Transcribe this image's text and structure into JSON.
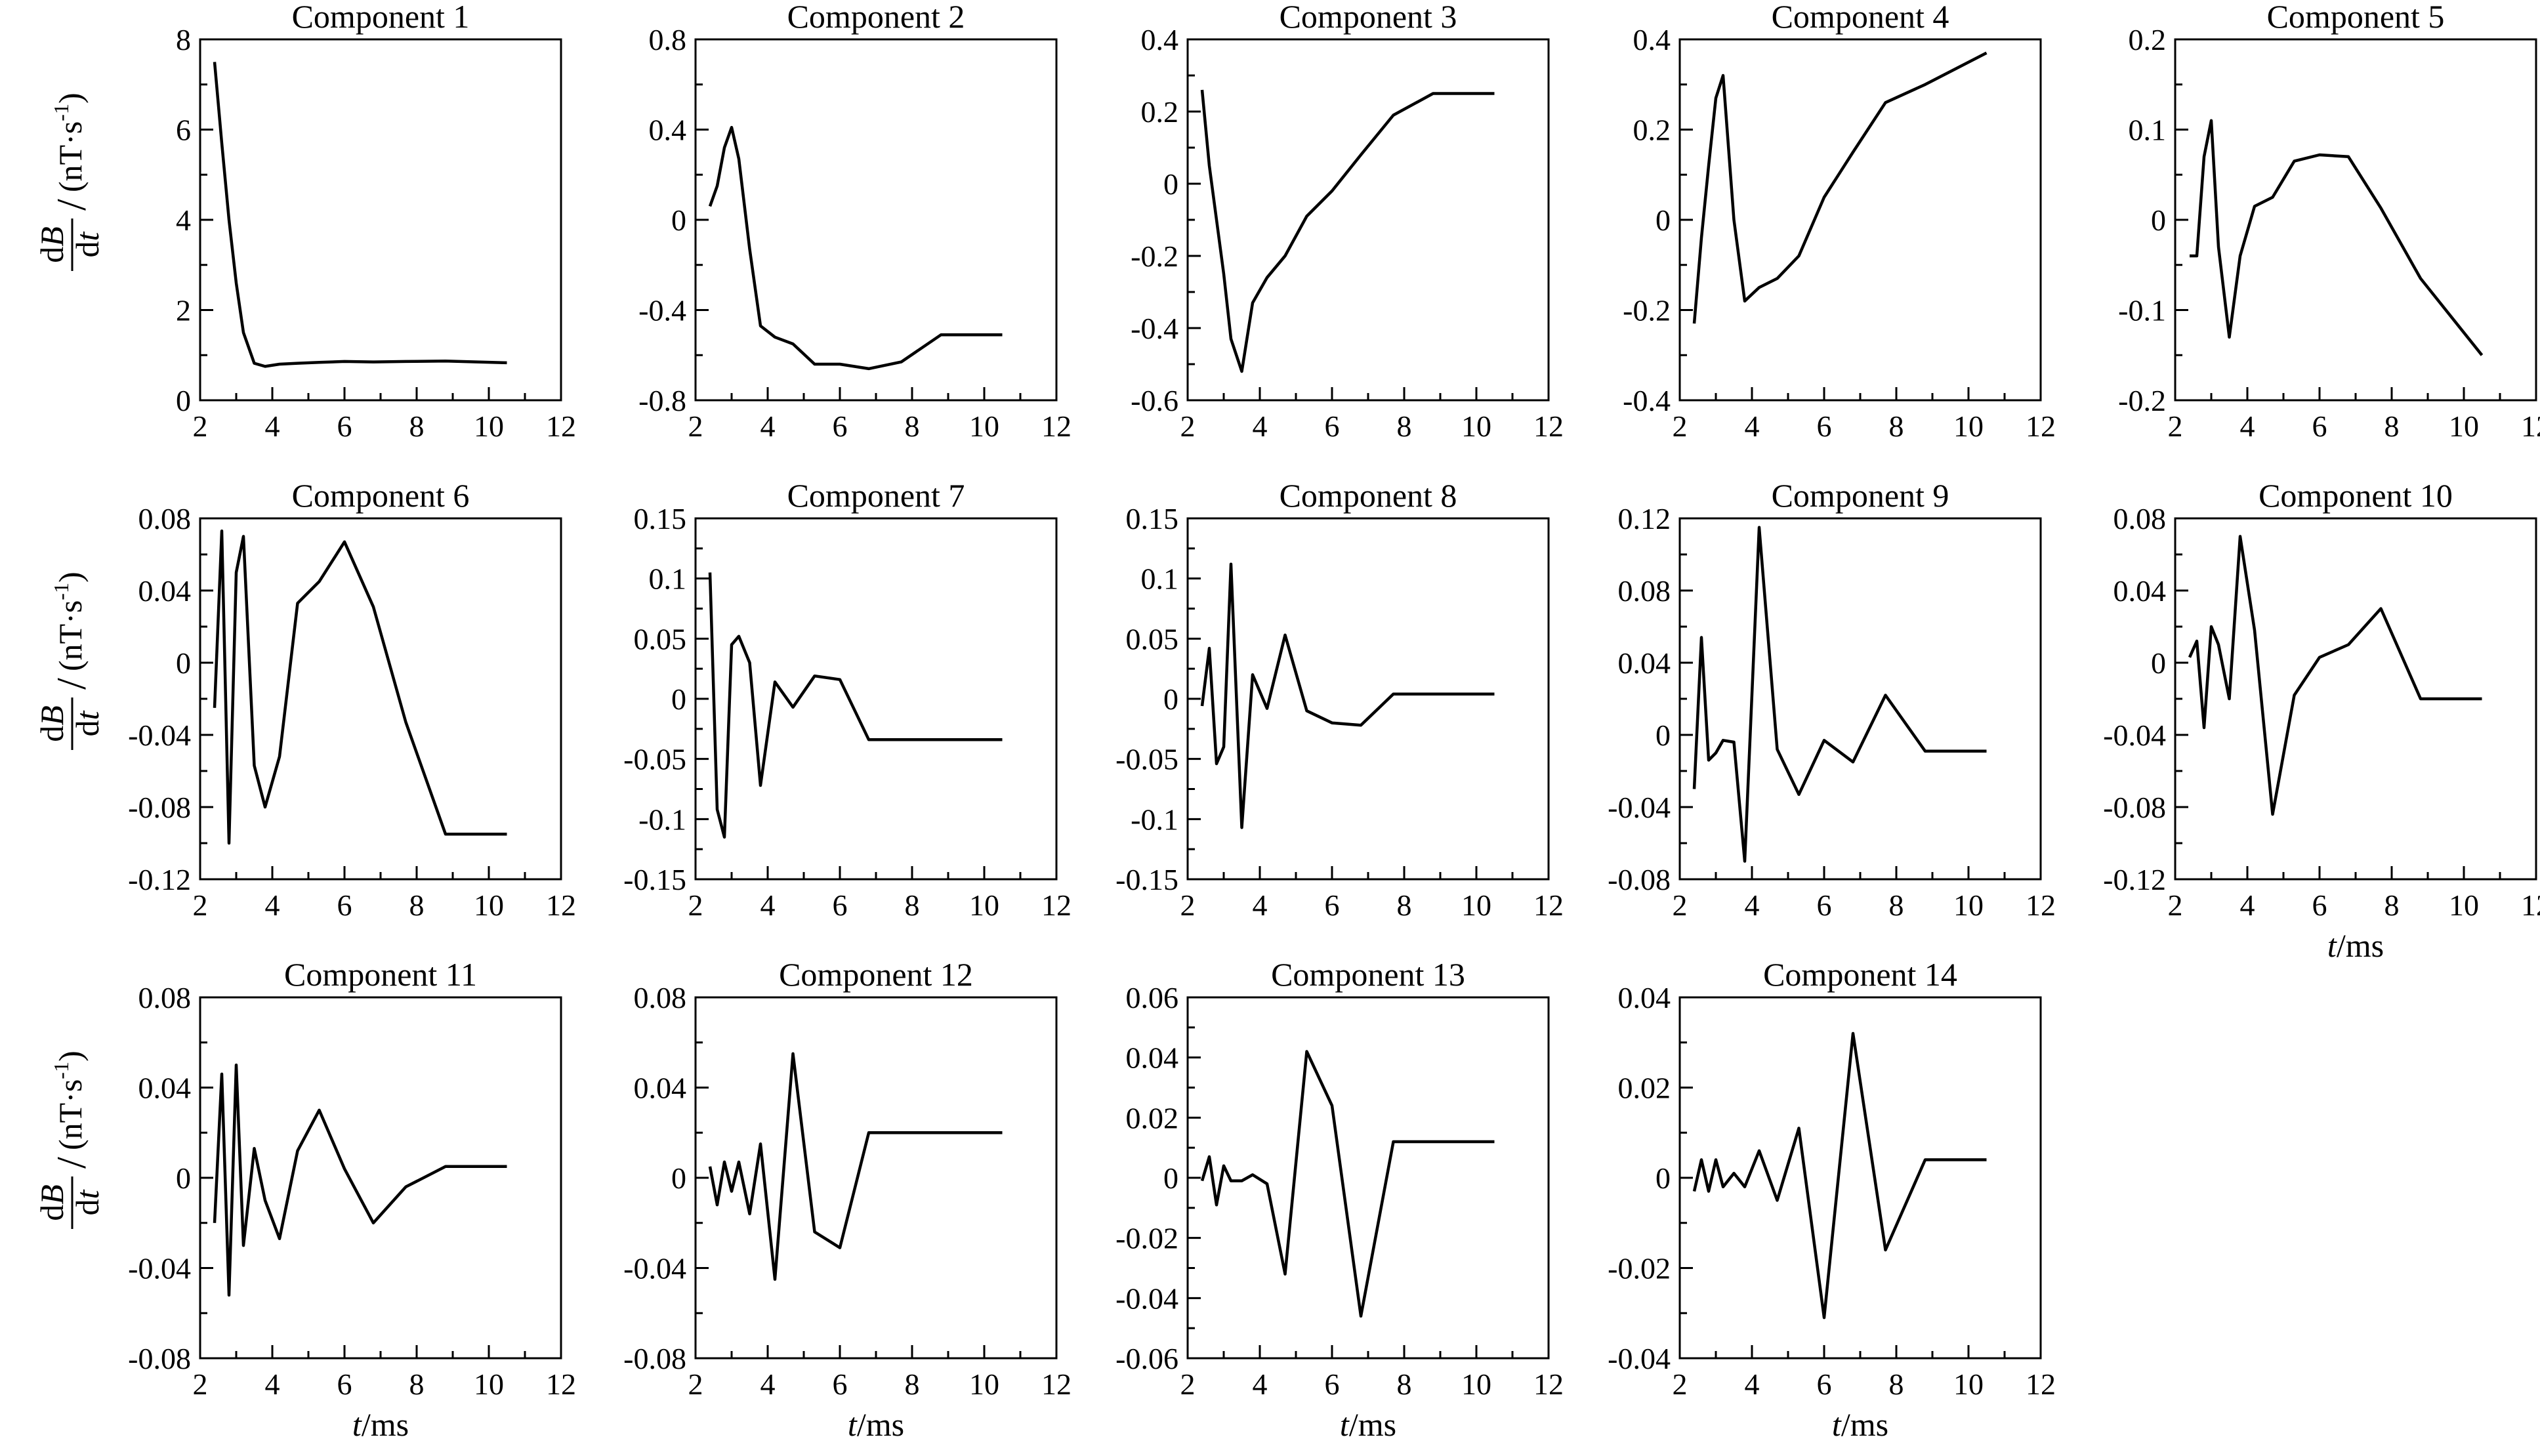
{
  "figure": {
    "y_label_main": "dB",
    "y_label_den": "dt",
    "y_label_unit": "(nT·s",
    "y_label_exp": "-1",
    "y_label_close": ")",
    "x_label_var": "t",
    "x_label_unit": "/ms"
  },
  "chart_data": [
    {
      "type": "line",
      "title": "Component 1",
      "xlim": [
        2,
        12
      ],
      "ylim": [
        0,
        8
      ],
      "xticks": [
        "2",
        "4",
        "6",
        "8",
        "10",
        "12"
      ],
      "yticks": [
        "0",
        "2",
        "4",
        "6",
        "8"
      ],
      "x": [
        2.4,
        2.6,
        2.8,
        3.0,
        3.2,
        3.5,
        3.8,
        4.2,
        4.7,
        5.3,
        6.0,
        6.8,
        7.7,
        8.8,
        10.5
      ],
      "values": [
        7.5,
        5.7,
        4.0,
        2.6,
        1.5,
        0.82,
        0.75,
        0.8,
        0.82,
        0.84,
        0.86,
        0.85,
        0.86,
        0.87,
        0.83
      ]
    },
    {
      "type": "line",
      "title": "Component 2",
      "xlim": [
        2,
        12
      ],
      "ylim": [
        -0.8,
        0.8
      ],
      "xticks": [
        "2",
        "4",
        "6",
        "8",
        "10",
        "12"
      ],
      "yticks": [
        "-0.8",
        "-0.4",
        "0",
        "0.4",
        "0.8"
      ],
      "x": [
        2.4,
        2.6,
        2.8,
        3.0,
        3.2,
        3.5,
        3.8,
        4.2,
        4.7,
        5.3,
        6.0,
        6.8,
        7.7,
        8.8,
        10.5
      ],
      "values": [
        0.06,
        0.15,
        0.32,
        0.41,
        0.27,
        -0.13,
        -0.47,
        -0.52,
        -0.55,
        -0.64,
        -0.64,
        -0.66,
        -0.63,
        -0.51,
        -0.51
      ]
    },
    {
      "type": "line",
      "title": "Component 3",
      "xlim": [
        2,
        12
      ],
      "ylim": [
        -0.6,
        0.4
      ],
      "xticks": [
        "2",
        "4",
        "6",
        "8",
        "10",
        "12"
      ],
      "yticks": [
        "-0.6",
        "-0.4",
        "-0.2",
        "0",
        "0.2",
        "0.4"
      ],
      "x": [
        2.4,
        2.6,
        2.8,
        3.0,
        3.2,
        3.5,
        3.8,
        4.2,
        4.7,
        5.3,
        6.0,
        6.8,
        7.7,
        8.8,
        10.5
      ],
      "values": [
        0.26,
        0.05,
        -0.1,
        -0.25,
        -0.43,
        -0.52,
        -0.33,
        -0.26,
        -0.2,
        -0.09,
        -0.02,
        0.08,
        0.19,
        0.25,
        0.25
      ]
    },
    {
      "type": "line",
      "title": "Component 4",
      "xlim": [
        2,
        12
      ],
      "ylim": [
        -0.4,
        0.4
      ],
      "xticks": [
        "2",
        "4",
        "6",
        "8",
        "10",
        "12"
      ],
      "yticks": [
        "-0.4",
        "-0.2",
        "0",
        "0.2",
        "0.4"
      ],
      "x": [
        2.4,
        2.6,
        2.8,
        3.0,
        3.2,
        3.5,
        3.8,
        4.2,
        4.7,
        5.3,
        6.0,
        6.8,
        7.7,
        8.8,
        10.5
      ],
      "values": [
        -0.23,
        -0.04,
        0.12,
        0.27,
        0.32,
        0.0,
        -0.18,
        -0.15,
        -0.13,
        -0.08,
        0.05,
        0.15,
        0.26,
        0.3,
        0.37
      ]
    },
    {
      "type": "line",
      "title": "Component 5",
      "xlim": [
        2,
        12
      ],
      "ylim": [
        -0.2,
        0.2
      ],
      "xticks": [
        "2",
        "4",
        "6",
        "8",
        "10",
        "12"
      ],
      "yticks": [
        "-0.2",
        "-0.1",
        "0",
        "0.1",
        "0.2"
      ],
      "x": [
        2.4,
        2.6,
        2.8,
        3.0,
        3.2,
        3.5,
        3.8,
        4.2,
        4.7,
        5.3,
        6.0,
        6.8,
        7.7,
        8.8,
        10.5
      ],
      "values": [
        -0.04,
        -0.04,
        0.07,
        0.11,
        -0.03,
        -0.13,
        -0.04,
        0.015,
        0.025,
        0.065,
        0.072,
        0.07,
        0.013,
        -0.065,
        -0.15
      ]
    },
    {
      "type": "line",
      "title": "Component 6",
      "xlim": [
        2,
        12
      ],
      "ylim": [
        -0.12,
        0.08
      ],
      "xticks": [
        "2",
        "4",
        "6",
        "8",
        "10",
        "12"
      ],
      "yticks": [
        "-0.12",
        "-0.08",
        "-0.04",
        "0",
        "0.04",
        "0.08"
      ],
      "x": [
        2.4,
        2.6,
        2.8,
        3.0,
        3.2,
        3.5,
        3.8,
        4.2,
        4.7,
        5.3,
        6.0,
        6.8,
        7.7,
        8.8,
        10.5
      ],
      "values": [
        -0.025,
        0.073,
        -0.1,
        0.05,
        0.07,
        -0.057,
        -0.08,
        -0.052,
        0.033,
        0.045,
        0.067,
        0.031,
        -0.033,
        -0.095,
        -0.095
      ]
    },
    {
      "type": "line",
      "title": "Component 7",
      "xlim": [
        2,
        12
      ],
      "ylim": [
        -0.15,
        0.15
      ],
      "xticks": [
        "2",
        "4",
        "6",
        "8",
        "10",
        "12"
      ],
      "yticks": [
        "-0.15",
        "-0.1",
        "-0.05",
        "0",
        "0.05",
        "0.1",
        "0.15"
      ],
      "x": [
        2.4,
        2.6,
        2.8,
        3.0,
        3.2,
        3.5,
        3.8,
        4.2,
        4.7,
        5.3,
        6.0,
        6.8,
        7.7,
        8.8,
        10.5
      ],
      "values": [
        0.105,
        -0.092,
        -0.115,
        0.045,
        0.052,
        0.03,
        -0.072,
        0.014,
        -0.007,
        0.019,
        0.016,
        -0.034,
        -0.034,
        -0.034,
        -0.034
      ]
    },
    {
      "type": "line",
      "title": "Component 8",
      "xlim": [
        2,
        12
      ],
      "ylim": [
        -0.15,
        0.15
      ],
      "xticks": [
        "2",
        "4",
        "6",
        "8",
        "10",
        "12"
      ],
      "yticks": [
        "-0.15",
        "-0.1",
        "-0.05",
        "0",
        "0.05",
        "0.1",
        "0.15"
      ],
      "x": [
        2.4,
        2.6,
        2.8,
        3.0,
        3.2,
        3.5,
        3.8,
        4.2,
        4.7,
        5.3,
        6.0,
        6.8,
        7.7,
        8.8,
        10.5
      ],
      "values": [
        -0.006,
        0.042,
        -0.054,
        -0.04,
        0.112,
        -0.107,
        0.02,
        -0.008,
        0.053,
        -0.01,
        -0.02,
        -0.022,
        0.004,
        0.004,
        0.004
      ]
    },
    {
      "type": "line",
      "title": "Component 9",
      "xlim": [
        2,
        12
      ],
      "ylim": [
        -0.08,
        0.12
      ],
      "xticks": [
        "2",
        "4",
        "6",
        "8",
        "10",
        "12"
      ],
      "yticks": [
        "-0.08",
        "-0.04",
        "0",
        "0.04",
        "0.08",
        "0.12"
      ],
      "x": [
        2.4,
        2.6,
        2.8,
        3.0,
        3.2,
        3.5,
        3.8,
        4.2,
        4.7,
        5.3,
        6.0,
        6.8,
        7.7,
        8.8,
        10.5
      ],
      "values": [
        -0.03,
        0.054,
        -0.014,
        -0.01,
        -0.003,
        -0.004,
        -0.07,
        0.115,
        -0.008,
        -0.033,
        -0.003,
        -0.015,
        0.022,
        -0.009,
        -0.009
      ]
    },
    {
      "type": "line",
      "title": "Component 10",
      "xlim": [
        2,
        12
      ],
      "ylim": [
        -0.12,
        0.08
      ],
      "xticks": [
        "2",
        "4",
        "6",
        "8",
        "10",
        "12"
      ],
      "yticks": [
        "-0.12",
        "-0.08",
        "-0.04",
        "0",
        "0.04",
        "0.08"
      ],
      "x": [
        2.4,
        2.6,
        2.8,
        3.0,
        3.2,
        3.5,
        3.8,
        4.2,
        4.7,
        5.3,
        6.0,
        6.8,
        7.7,
        8.8,
        10.5
      ],
      "values": [
        0.003,
        0.012,
        -0.036,
        0.02,
        0.01,
        -0.02,
        0.07,
        0.018,
        -0.084,
        -0.018,
        0.003,
        0.01,
        0.03,
        -0.02,
        -0.02
      ]
    },
    {
      "type": "line",
      "title": "Component 11",
      "xlim": [
        2,
        12
      ],
      "ylim": [
        -0.08,
        0.08
      ],
      "xticks": [
        "2",
        "4",
        "6",
        "8",
        "10",
        "12"
      ],
      "yticks": [
        "-0.08",
        "-0.04",
        "0",
        "0.04",
        "0.08"
      ],
      "x": [
        2.4,
        2.6,
        2.8,
        3.0,
        3.2,
        3.5,
        3.8,
        4.2,
        4.7,
        5.3,
        6.0,
        6.8,
        7.7,
        8.8,
        10.5
      ],
      "values": [
        -0.02,
        0.046,
        -0.052,
        0.05,
        -0.03,
        0.013,
        -0.01,
        -0.027,
        0.012,
        0.03,
        0.004,
        -0.02,
        -0.004,
        0.005,
        0.005
      ]
    },
    {
      "type": "line",
      "title": "Component 12",
      "xlim": [
        2,
        12
      ],
      "ylim": [
        -0.08,
        0.08
      ],
      "xticks": [
        "2",
        "4",
        "6",
        "8",
        "10",
        "12"
      ],
      "yticks": [
        "-0.08",
        "-0.04",
        "0",
        "0.04",
        "0.08"
      ],
      "x": [
        2.4,
        2.6,
        2.8,
        3.0,
        3.2,
        3.5,
        3.8,
        4.2,
        4.7,
        5.3,
        6.0,
        6.8,
        7.7,
        8.8,
        10.5
      ],
      "values": [
        0.005,
        -0.012,
        0.007,
        -0.006,
        0.007,
        -0.016,
        0.015,
        -0.045,
        0.055,
        -0.024,
        -0.031,
        0.02,
        0.02,
        0.02,
        0.02
      ]
    },
    {
      "type": "line",
      "title": "Component 13",
      "xlim": [
        2,
        12
      ],
      "ylim": [
        -0.06,
        0.06
      ],
      "xticks": [
        "2",
        "4",
        "6",
        "8",
        "10",
        "12"
      ],
      "yticks": [
        "-0.06",
        "-0.04",
        "-0.02",
        "0",
        "0.02",
        "0.04",
        "0.06"
      ],
      "x": [
        2.4,
        2.6,
        2.8,
        3.0,
        3.2,
        3.5,
        3.8,
        4.2,
        4.7,
        5.3,
        6.0,
        6.8,
        7.7,
        8.8,
        10.5
      ],
      "values": [
        -0.001,
        0.007,
        -0.009,
        0.004,
        -0.001,
        -0.001,
        0.001,
        -0.002,
        -0.032,
        0.042,
        0.024,
        -0.046,
        0.012,
        0.012,
        0.012
      ]
    },
    {
      "type": "line",
      "title": "Component 14",
      "xlim": [
        2,
        12
      ],
      "ylim": [
        -0.04,
        0.04
      ],
      "xticks": [
        "2",
        "4",
        "6",
        "8",
        "10",
        "12"
      ],
      "yticks": [
        "-0.04",
        "-0.02",
        "0",
        "0.02",
        "0.04"
      ],
      "x": [
        2.4,
        2.6,
        2.8,
        3.0,
        3.2,
        3.5,
        3.8,
        4.2,
        4.7,
        5.3,
        6.0,
        6.8,
        7.7,
        8.8,
        10.5
      ],
      "values": [
        -0.003,
        0.004,
        -0.003,
        0.004,
        -0.002,
        0.001,
        -0.002,
        0.006,
        -0.005,
        0.011,
        -0.031,
        0.032,
        -0.016,
        0.004,
        0.004
      ]
    }
  ]
}
